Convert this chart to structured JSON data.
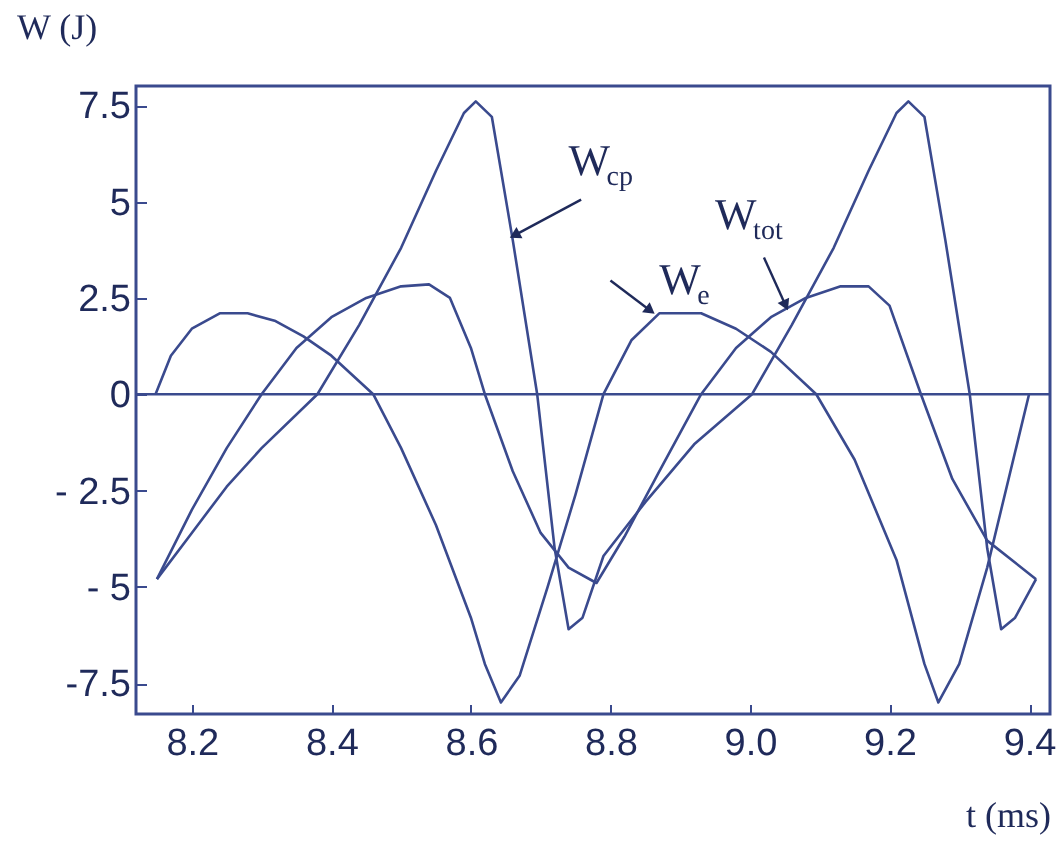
{
  "chart_data": {
    "type": "line",
    "xlabel": "t (ms)",
    "ylabel": "W (J)",
    "xlim": [
      8.12,
      9.43
    ],
    "ylim": [
      -8.3,
      8.0
    ],
    "xticks": [
      {
        "value": 8.2,
        "label": "8.2"
      },
      {
        "value": 8.4,
        "label": "8.4"
      },
      {
        "value": 8.6,
        "label": "8.6"
      },
      {
        "value": 8.8,
        "label": "8.8"
      },
      {
        "value": 9.0,
        "label": "9.0"
      },
      {
        "value": 9.2,
        "label": "9.2"
      },
      {
        "value": 9.4,
        "label": "9.4"
      }
    ],
    "yticks": [
      {
        "value": 7.5,
        "label": "7.5"
      },
      5,
      2.5,
      0,
      {
        "value": -2.5,
        "label": "- 2.5"
      },
      {
        "value": -5,
        "label": "- 5"
      },
      -7.5
    ],
    "grid": false,
    "legend": false,
    "marker": "none",
    "line_style": "solid",
    "ref_lines": [
      {
        "axis": "y",
        "value": 0,
        "color": "#3a4a8e"
      }
    ],
    "series": [
      {
        "name": "W$_{cp}$",
        "color": "#3a4a8e",
        "x": [
          8.15,
          8.2,
          8.25,
          8.3,
          8.38,
          8.44,
          8.5,
          8.55,
          8.59,
          8.607,
          8.63,
          8.66,
          8.695,
          8.72,
          8.74,
          8.76,
          8.79,
          8.85,
          8.92,
          9.003,
          9.06,
          9.12,
          9.17,
          9.21,
          9.227,
          9.25,
          9.28,
          9.315,
          9.34,
          9.36,
          9.38,
          9.41
        ],
        "values": [
          -4.8,
          -3.6,
          -2.4,
          -1.4,
          0,
          1.8,
          3.8,
          5.8,
          7.3,
          7.6,
          7.2,
          4.0,
          0,
          -4.0,
          -6.1,
          -5.8,
          -4.2,
          -2.8,
          -1.3,
          0,
          1.8,
          3.8,
          5.8,
          7.3,
          7.6,
          7.2,
          4.0,
          0,
          -4.0,
          -6.1,
          -5.8,
          -4.8
        ]
      },
      {
        "name": "W$_{e}$",
        "color": "#3a4a8e",
        "x": [
          8.148,
          8.17,
          8.2,
          8.24,
          8.28,
          8.32,
          8.36,
          8.4,
          8.46,
          8.5,
          8.55,
          8.6,
          8.62,
          8.643,
          8.67,
          8.71,
          8.75,
          8.79,
          8.83,
          8.87,
          8.93,
          8.98,
          9.03,
          9.095,
          9.15,
          9.21,
          9.25,
          9.27,
          9.3,
          9.34,
          9.4
        ],
        "values": [
          0,
          1.0,
          1.7,
          2.1,
          2.1,
          1.9,
          1.5,
          1.0,
          0,
          -1.4,
          -3.4,
          -5.8,
          -7.0,
          -8.0,
          -7.3,
          -5.0,
          -2.6,
          0,
          1.4,
          2.1,
          2.1,
          1.7,
          1.1,
          0,
          -1.7,
          -4.3,
          -7.0,
          -8.0,
          -7.0,
          -4.5,
          0
        ]
      },
      {
        "name": "W$_{tot}$",
        "color": "#3a4a8e",
        "x": [
          8.15,
          8.2,
          8.25,
          8.3,
          8.35,
          8.4,
          8.45,
          8.5,
          8.54,
          8.57,
          8.6,
          8.62,
          8.66,
          8.7,
          8.74,
          8.78,
          8.82,
          8.87,
          8.93,
          8.98,
          9.03,
          9.08,
          9.13,
          9.17,
          9.2,
          9.245,
          9.29,
          9.34,
          9.41
        ],
        "values": [
          -4.8,
          -3.0,
          -1.4,
          0,
          1.2,
          2.0,
          2.5,
          2.8,
          2.85,
          2.5,
          1.2,
          0,
          -2.0,
          -3.6,
          -4.5,
          -4.9,
          -3.7,
          -2.0,
          0,
          1.2,
          2.0,
          2.5,
          2.8,
          2.8,
          2.3,
          0,
          -2.2,
          -3.8,
          -4.8
        ]
      }
    ]
  }
}
